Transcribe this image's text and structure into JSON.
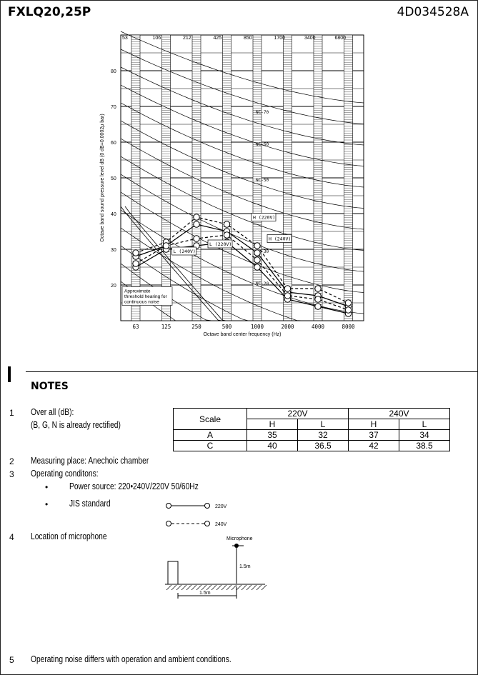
{
  "header": {
    "model": "FXLQ20,25P",
    "doc_no": "4D034528A"
  },
  "chart_data": {
    "type": "line",
    "xlabel": "Octave band center frequency (Hz)",
    "ylabel": "Octave band sound pressure level dB (0 dB=0.0002μ bar)",
    "x_categories": [
      "63",
      "125",
      "250",
      "500",
      "1000",
      "2000",
      "4000",
      "8000"
    ],
    "top_labels": [
      "53",
      "106",
      "212",
      "425",
      "850",
      "1700",
      "3400",
      "6800"
    ],
    "yticks": [
      "20",
      "30",
      "40",
      "50",
      "60",
      "70",
      "80"
    ],
    "ylim": [
      10,
      90
    ],
    "nc_labels": [
      "NC-70",
      "NC-60",
      "NC-50",
      "NC-40",
      "NC-30",
      "NC-20"
    ],
    "threshold_note": [
      "Approximate",
      "threshold hearing for",
      "continuous noise"
    ],
    "series": [
      {
        "name": "H (220V)",
        "values": [
          28,
          31,
          37,
          35,
          29,
          18,
          17,
          14
        ]
      },
      {
        "name": "L (220V)",
        "values": [
          25,
          30,
          31,
          32,
          25,
          16,
          14,
          12
        ]
      },
      {
        "name": "H (240V)",
        "values": [
          29,
          32,
          39,
          37,
          31,
          19,
          19,
          15
        ]
      },
      {
        "name": "L (240V)",
        "values": [
          26,
          31,
          33,
          34,
          27,
          17,
          16,
          13
        ]
      }
    ],
    "line_labels": [
      "H (220V)",
      "H (240V)",
      "L (240V)",
      "L (220V)"
    ]
  },
  "notes": {
    "title": "NOTES",
    "items": [
      {
        "num": "1",
        "text": "Over all (dB):",
        "sub": "(B, G, N is already rectified)"
      },
      {
        "num": "2",
        "text": "Measuring place: Anechoic chamber"
      },
      {
        "num": "3",
        "text": "Operating conditons:"
      },
      {
        "num": "4",
        "text": "Location of microphone"
      },
      {
        "num": "5",
        "text": "Operating noise differs with operation and ambient conditions."
      }
    ],
    "conditions": [
      "Power source: 220•240V/220V 50/60Hz",
      "JIS standard"
    ],
    "legend": {
      "solid": "220V",
      "dashed": "240V"
    },
    "table": {
      "header": [
        "Scale",
        "220V",
        "240V"
      ],
      "sub": [
        "H",
        "L",
        "H",
        "L"
      ],
      "rows": [
        [
          "A",
          "35",
          "32",
          "37",
          "34"
        ],
        [
          "C",
          "40",
          "36.5",
          "42",
          "38.5"
        ]
      ]
    },
    "mic": {
      "label": "Microphone",
      "height": "1.5m",
      "distance": "1.5m"
    }
  }
}
